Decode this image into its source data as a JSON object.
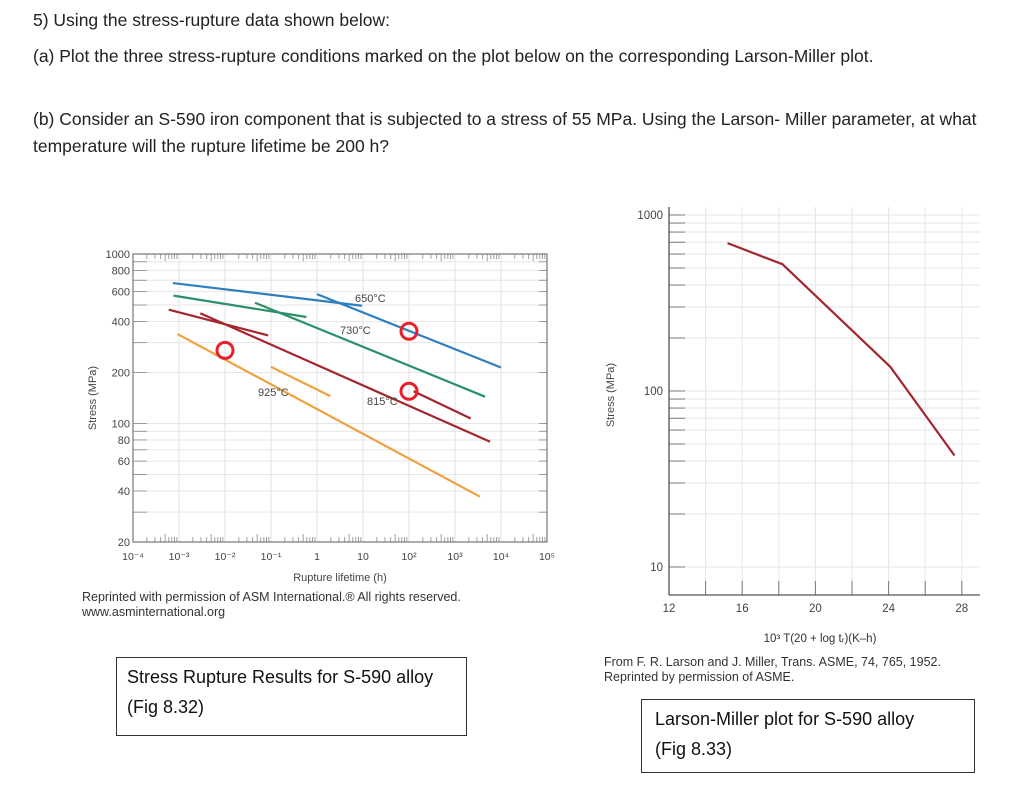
{
  "question": {
    "title": "5) Using the stress-rupture data shown below:",
    "part_a": "(a) Plot the three stress-rupture conditions marked on the plot below on the corresponding Larson-Miller plot.",
    "part_b": "(b) Consider an S-590 iron component that is subjected to a stress of 55 MPa. Using the Larson- Miller parameter, at what temperature will the rupture lifetime be 200 h?"
  },
  "fig832": {
    "credit_line1": "Reprinted with permission of ASM International.® All rights reserved.",
    "credit_line2": "www.asminternational.org",
    "box_line1": "Stress Rupture Results for S-590 alloy",
    "box_line2": "(Fig 8.32)"
  },
  "fig833": {
    "credit_line1": "From F. R. Larson and J. Miller, Trans. ASME, 74, 765, 1952.",
    "credit_line2": "Reprinted by permission of ASME.",
    "box_line1": "Larson-Miller plot for S-590 alloy",
    "box_line2": "(Fig 8.33)"
  },
  "chart_data": [
    {
      "type": "line",
      "xlabel": "Rupture lifetime (h)",
      "ylabel": "Stress (MPa)",
      "x_scale": "log",
      "y_scale": "log",
      "xlim": [
        0.0001,
        100000
      ],
      "ylim": [
        20,
        1000
      ],
      "grid": true,
      "x_tick_values": [
        0.0001,
        0.001,
        0.01,
        0.1,
        1,
        10,
        100,
        1000,
        10000,
        100000
      ],
      "x_tick_labels": [
        "10⁻⁴",
        "10⁻³",
        "10⁻²",
        "10⁻¹",
        "1",
        "10",
        "10²",
        "10³",
        "10⁴",
        "10⁵"
      ],
      "y_tick_values": [
        1000,
        800,
        600,
        400,
        200,
        100,
        80,
        60,
        40,
        20
      ],
      "y_tick_labels": [
        "1000",
        "800",
        "600",
        "400",
        "200",
        "100",
        "80",
        "60",
        "40",
        "20"
      ],
      "series": [
        {
          "name": "650°C",
          "color": "#2f7fbf",
          "segments": [
            [
              [
                0.00074,
                674
              ],
              [
                9.5,
                495
              ]
            ],
            [
              [
                1,
                580
              ],
              [
                10000,
                214
              ]
            ]
          ]
        },
        {
          "name": "730°C",
          "color": "#2a9068",
          "segments": [
            [
              [
                0.00076,
                568
              ],
              [
                0.59,
                425
              ]
            ],
            [
              [
                0.045,
                516
              ],
              [
                4500,
                144
              ]
            ]
          ]
        },
        {
          "name": "815°C",
          "color": "#a3262e",
          "segments": [
            [
              [
                0.0006,
                469
              ],
              [
                0.087,
                331
              ]
            ],
            [
              [
                0.0029,
                447
              ],
              [
                5800,
                78
              ]
            ],
            [
              [
                126,
                155
              ],
              [
                2200,
                107
              ]
            ]
          ]
        },
        {
          "name": "925°C",
          "color": "#f0a040",
          "segments": [
            [
              [
                0.00093,
                337
              ],
              [
                3500,
                37
              ]
            ],
            [
              [
                0.1,
                216
              ],
              [
                1.95,
                145
              ]
            ]
          ]
        }
      ],
      "marked_points": [
        {
          "x": 0.01,
          "y": 270,
          "color": "#e8202a"
        },
        {
          "x": 100,
          "y": 350,
          "color": "#e8202a"
        },
        {
          "x": 100,
          "y": 155,
          "color": "#e8202a"
        }
      ]
    },
    {
      "type": "line",
      "xlabel": "10³ T(20 + log tᵣ)(K–h)",
      "ylabel": "Stress (MPa)",
      "x_scale": "linear",
      "y_scale": "log",
      "xlim": [
        12,
        28.8
      ],
      "ylim": [
        7.5,
        1000
      ],
      "grid": true,
      "x_tick_values": [
        12,
        16,
        20,
        24,
        28
      ],
      "x_tick_labels": [
        "12",
        "16",
        "20",
        "24",
        "28"
      ],
      "y_tick_values": [
        1000,
        100,
        10
      ],
      "y_tick_labels": [
        "1000",
        "100",
        "10"
      ],
      "series": [
        {
          "color": "#a3262e",
          "points": [
            [
              15.2,
              692
            ],
            [
              18.2,
              525
            ],
            [
              24.1,
              137
            ],
            [
              27.6,
              43
            ]
          ]
        }
      ]
    }
  ]
}
